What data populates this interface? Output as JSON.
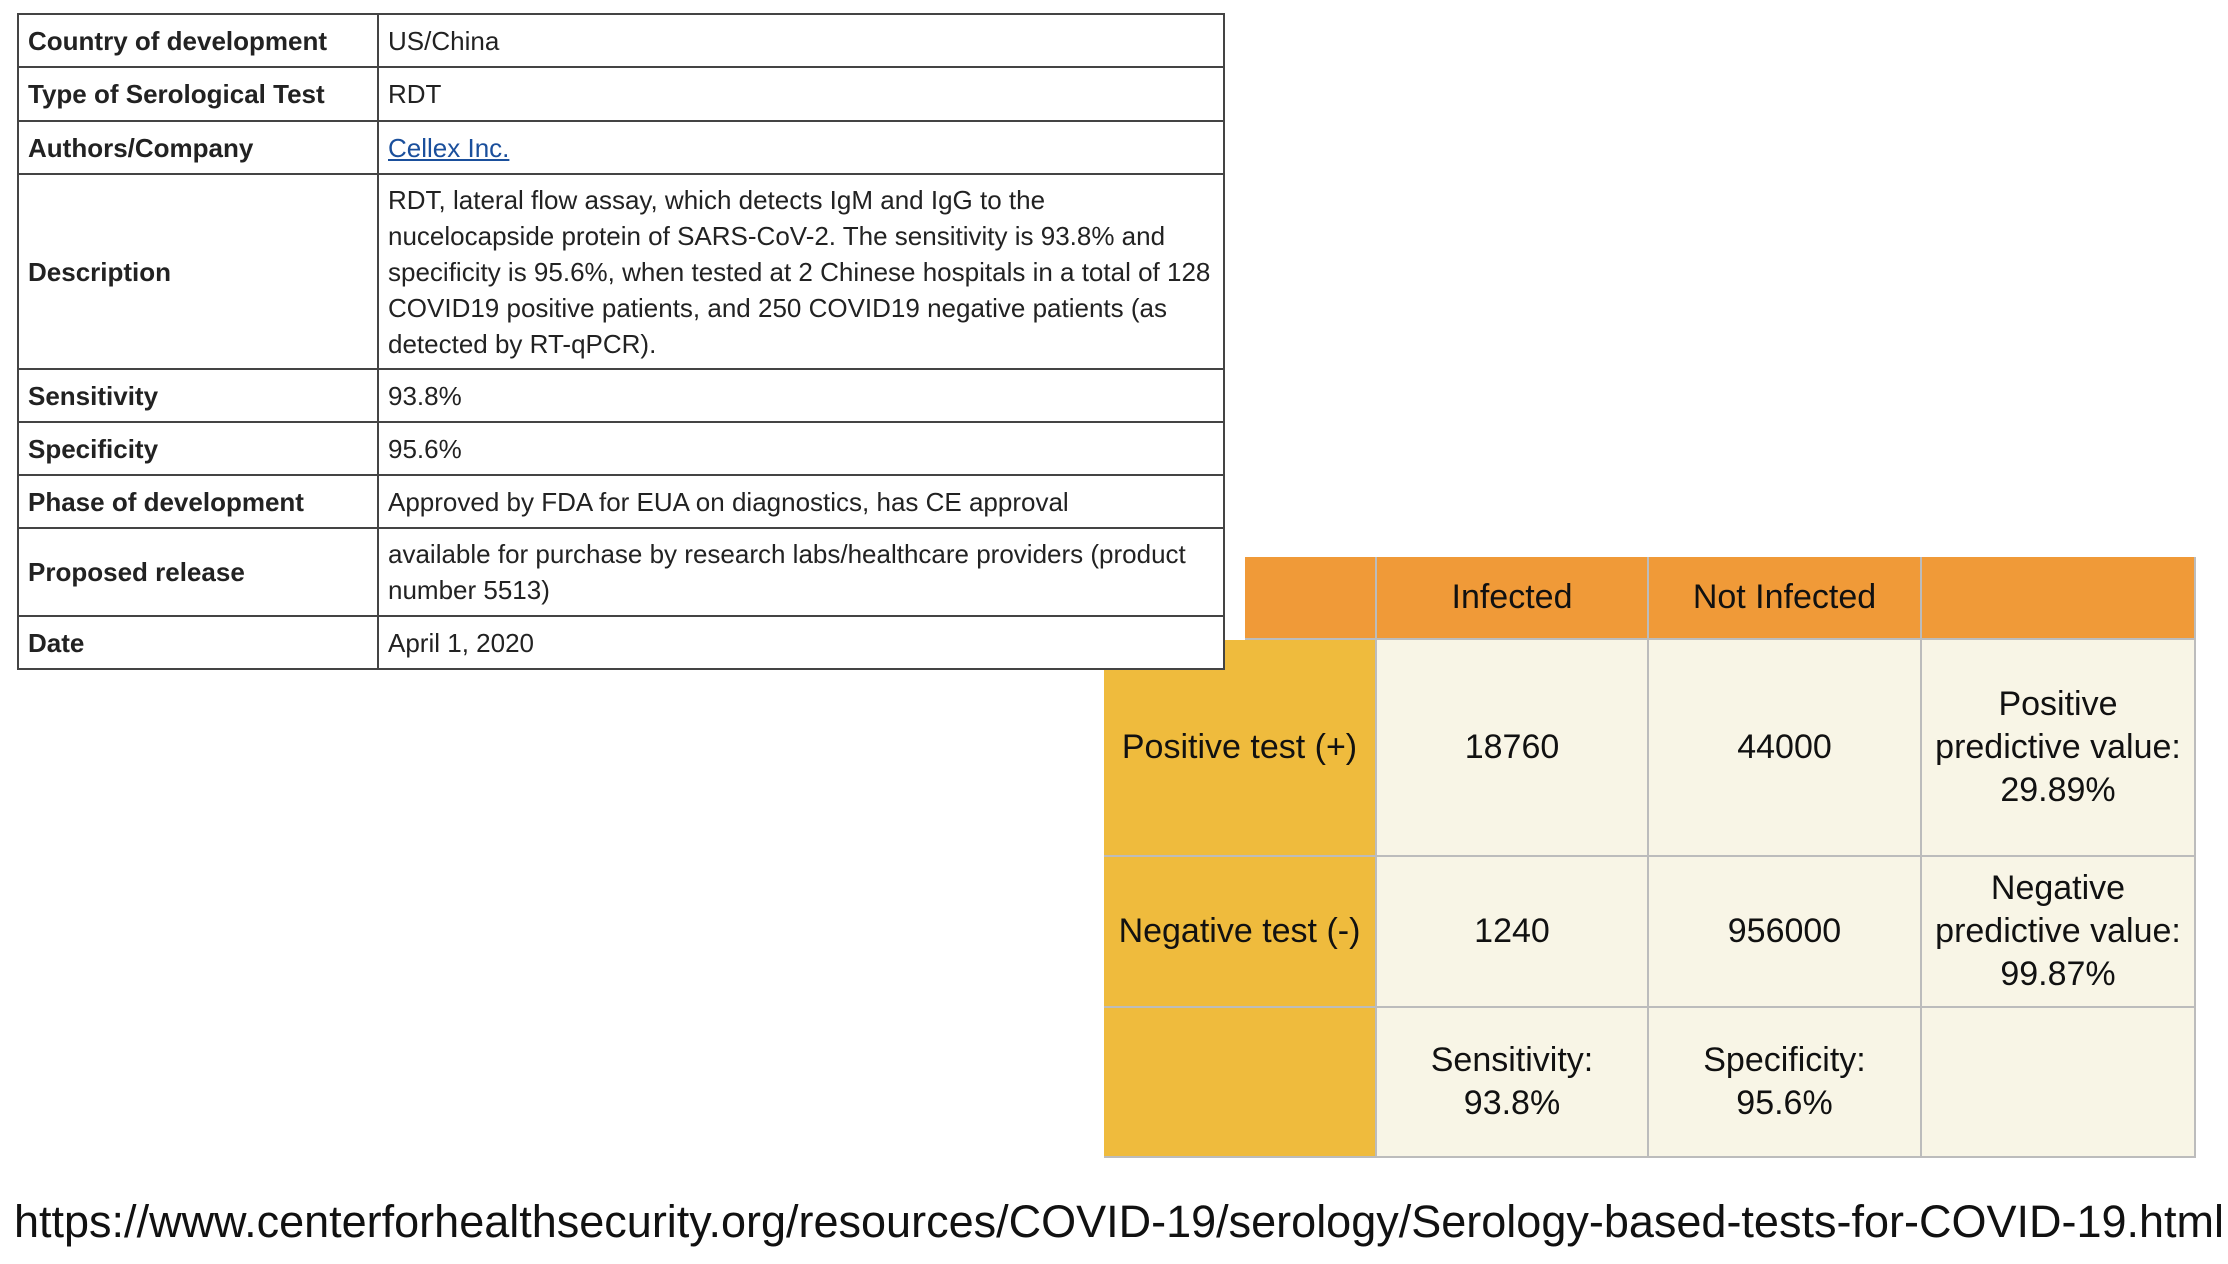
{
  "spec_table": {
    "rows": [
      [
        "Country of development",
        "US/China"
      ],
      [
        "Type of Serological Test",
        "RDT"
      ],
      [
        "Authors/Company",
        "Cellex Inc."
      ],
      [
        "Description",
        "RDT, lateral flow assay, which detects IgM and IgG to the nucelocapside protein of SARS-CoV-2. The sensitivity is 93.8% and specificity is 95.6%, when tested at 2 Chinese hospitals in a total of 128 COVID19 positive patients, and 250 COVID19 negative patients (as detected by RT-qPCR)."
      ],
      [
        "Sensitivity",
        "93.8%"
      ],
      [
        "Specificity",
        "95.6%"
      ],
      [
        "Phase of development",
        "Approved by FDA for EUA on diagnostics, has CE approval"
      ],
      [
        "Proposed release",
        "available for purchase by research labs/healthcare providers (product number 5513)"
      ],
      [
        "Date",
        "April 1, 2020"
      ]
    ]
  },
  "contingency_table": {
    "columns": [
      "Infected",
      "Not Infected"
    ],
    "rows": [
      {
        "label": "Positive test (+)",
        "infected": 18760,
        "not_infected": 44000,
        "note": "Positive predictive value: 29.89%"
      },
      {
        "label": "Negative test (-)",
        "infected": 1240,
        "not_infected": 956000,
        "note": "Negative predictive value: 99.87%"
      }
    ],
    "footer": [
      "Sensitivity: 93.8%",
      "Specificity: 95.6%"
    ]
  },
  "source_url": "https://www.centerforhealthsecurity.org/resources/COVID-19/serology/Serology-based-tests-for-COVID-19.html"
}
